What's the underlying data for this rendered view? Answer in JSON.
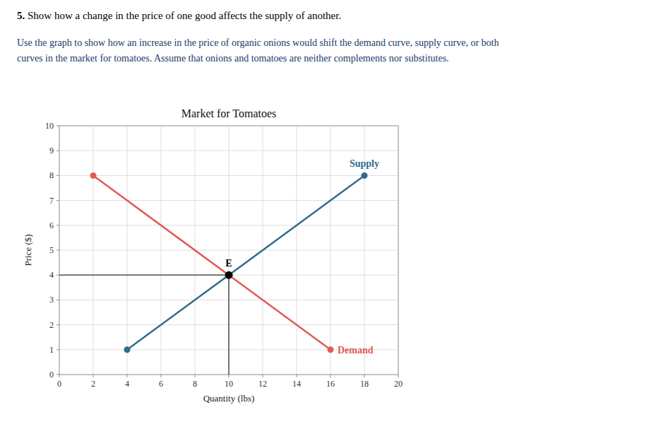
{
  "chart_data": {
    "type": "line",
    "header_bold": "5.",
    "header_text": " Show how a change in the price of one good affects the supply of another.",
    "body_text": "Use the graph to show how an increase in the price of organic onions would shift the demand curve, supply curve, or both\ncurves in the market for tomatoes. Assume that onions and tomatoes are neither complements nor substitutes.",
    "title": "Market for Tomatoes",
    "xlabel": "Quantity (lbs)",
    "ylabel": "Price ($)",
    "xlim": [
      0,
      20
    ],
    "ylim": [
      0,
      10
    ],
    "xticks": [
      0,
      2,
      4,
      6,
      8,
      10,
      12,
      14,
      16,
      18,
      20
    ],
    "yticks": [
      0,
      1,
      2,
      3,
      4,
      5,
      6,
      7,
      8,
      9,
      10
    ],
    "grid": true,
    "series": [
      {
        "name": "Supply",
        "color": "#2e6b8a",
        "x": [
          4,
          10,
          18
        ],
        "values": [
          1,
          4,
          8
        ]
      },
      {
        "name": "Demand",
        "color": "#e05a5a",
        "x": [
          2,
          10,
          16
        ],
        "values": [
          8,
          4,
          1
        ]
      }
    ],
    "equilibrium": {
      "x": 10,
      "y": 4,
      "label": "E",
      "color": "#000000"
    }
  }
}
